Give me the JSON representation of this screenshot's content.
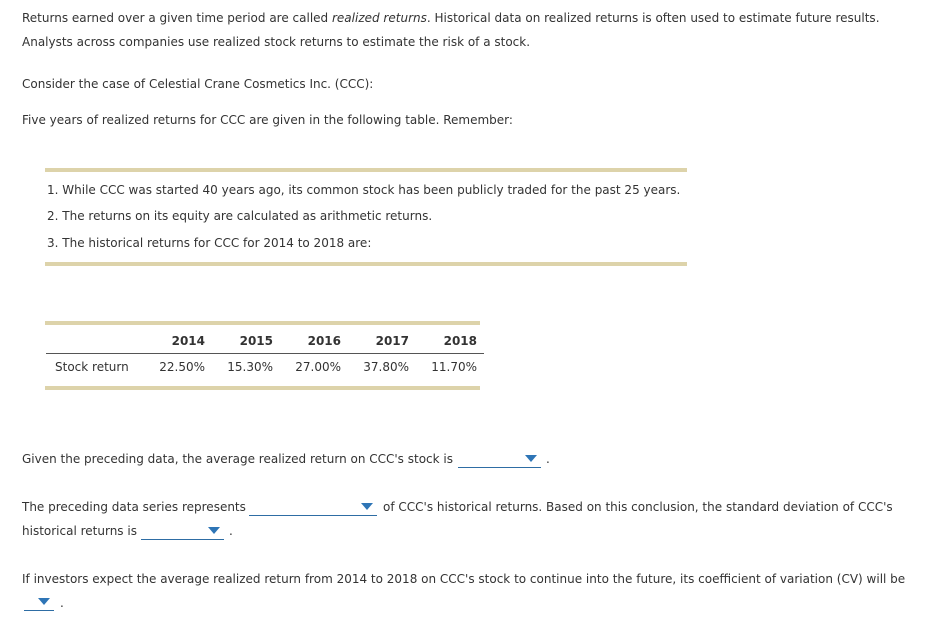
{
  "intro": {
    "line1_pre": "Returns earned over a given time period are called ",
    "line1_em": "realized returns",
    "line1_post": ". Historical data on realized returns is often used to estimate future results.",
    "line2": "Analysts across companies use realized stock returns to estimate the risk of a stock."
  },
  "case_text": "Consider the case of Celestial Crane Cosmetics Inc. (CCC):",
  "five_years_text": "Five years of realized returns for CCC are given in the following table. Remember:",
  "remember_list": [
    "1. While CCC was started 40 years ago, its common stock has been publicly traded for the past 25 years.",
    "2. The returns on its equity are calculated as arithmetic returns.",
    "3. The historical returns for CCC for 2014 to 2018 are:"
  ],
  "returns_table": {
    "columns": [
      "2014",
      "2015",
      "2016",
      "2017",
      "2018"
    ],
    "row_label": "Stock return",
    "values": [
      "22.50%",
      "15.30%",
      "27.00%",
      "37.80%",
      "11.70%"
    ]
  },
  "questions": {
    "average_pre": "Given the preceding data, the average realized return on CCC's stock is",
    "average_post": ".",
    "series_pre": "The preceding data series represents",
    "series_post": "of CCC's historical returns. Based on this conclusion, the standard deviation of CCC's",
    "std_pre": "historical returns is",
    "std_post": ".",
    "cv_pre": "If investors expect the average realized return from 2014 to 2018 on CCC's stock to continue into the future, its coefficient of variation (CV) will be",
    "cv_post": "."
  },
  "dropdowns": {
    "average": "",
    "series": "",
    "std": "",
    "cv": ""
  },
  "colors": {
    "rule": "#ddd3aa",
    "dropdown_underline": "#2e6da4",
    "caret": "#2e75b6",
    "text": "#333333"
  },
  "icons": {
    "dropdown_caret": "triangle-down"
  }
}
